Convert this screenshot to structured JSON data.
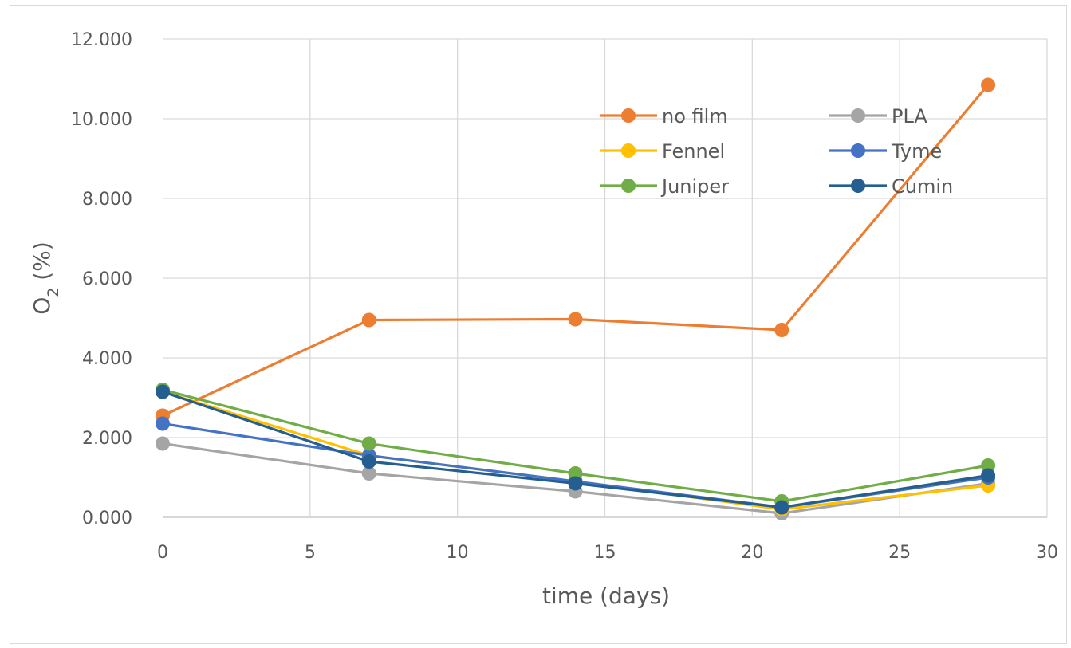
{
  "chart_data": {
    "type": "line",
    "title": "",
    "xlabel": "time (days)",
    "ylabel": {
      "base": "O",
      "subscript": "2",
      "suffix": " (%)"
    },
    "xlim": [
      0,
      30
    ],
    "ylim": [
      0,
      12
    ],
    "x_ticks": [
      0,
      5,
      10,
      15,
      20,
      25,
      30
    ],
    "x_tick_labels": [
      "0",
      "5",
      "10",
      "15",
      "20",
      "25",
      "30"
    ],
    "y_ticks": [
      0,
      2,
      4,
      6,
      8,
      10,
      12
    ],
    "y_tick_labels": [
      "0.000",
      "2.000",
      "4.000",
      "6.000",
      "8.000",
      "10.000",
      "12.000"
    ],
    "grid": true,
    "legend_position": "top-right",
    "x": [
      0,
      7,
      14,
      21,
      28
    ],
    "series": [
      {
        "name": "no film",
        "color": "#ED7D31",
        "values": [
          2.55,
          4.95,
          4.97,
          4.7,
          10.85
        ]
      },
      {
        "name": "PLA",
        "color": "#A5A5A5",
        "values": [
          1.85,
          1.1,
          0.65,
          0.1,
          0.85
        ]
      },
      {
        "name": "Fennel",
        "color": "#FFC000",
        "values": [
          3.15,
          1.55,
          0.9,
          0.2,
          0.8
        ]
      },
      {
        "name": "Tyme",
        "color": "#4472C4",
        "values": [
          2.35,
          1.55,
          0.9,
          0.25,
          1.0
        ]
      },
      {
        "name": "Juniper",
        "color": "#70AD47",
        "values": [
          3.2,
          1.85,
          1.1,
          0.4,
          1.3
        ]
      },
      {
        "name": "Cumin",
        "color": "#255E91",
        "values": [
          3.15,
          1.4,
          0.85,
          0.25,
          1.05
        ]
      }
    ],
    "legend_order": [
      "no film",
      "PLA",
      "Fennel",
      "Tyme",
      "Juniper",
      "Cumin"
    ]
  }
}
